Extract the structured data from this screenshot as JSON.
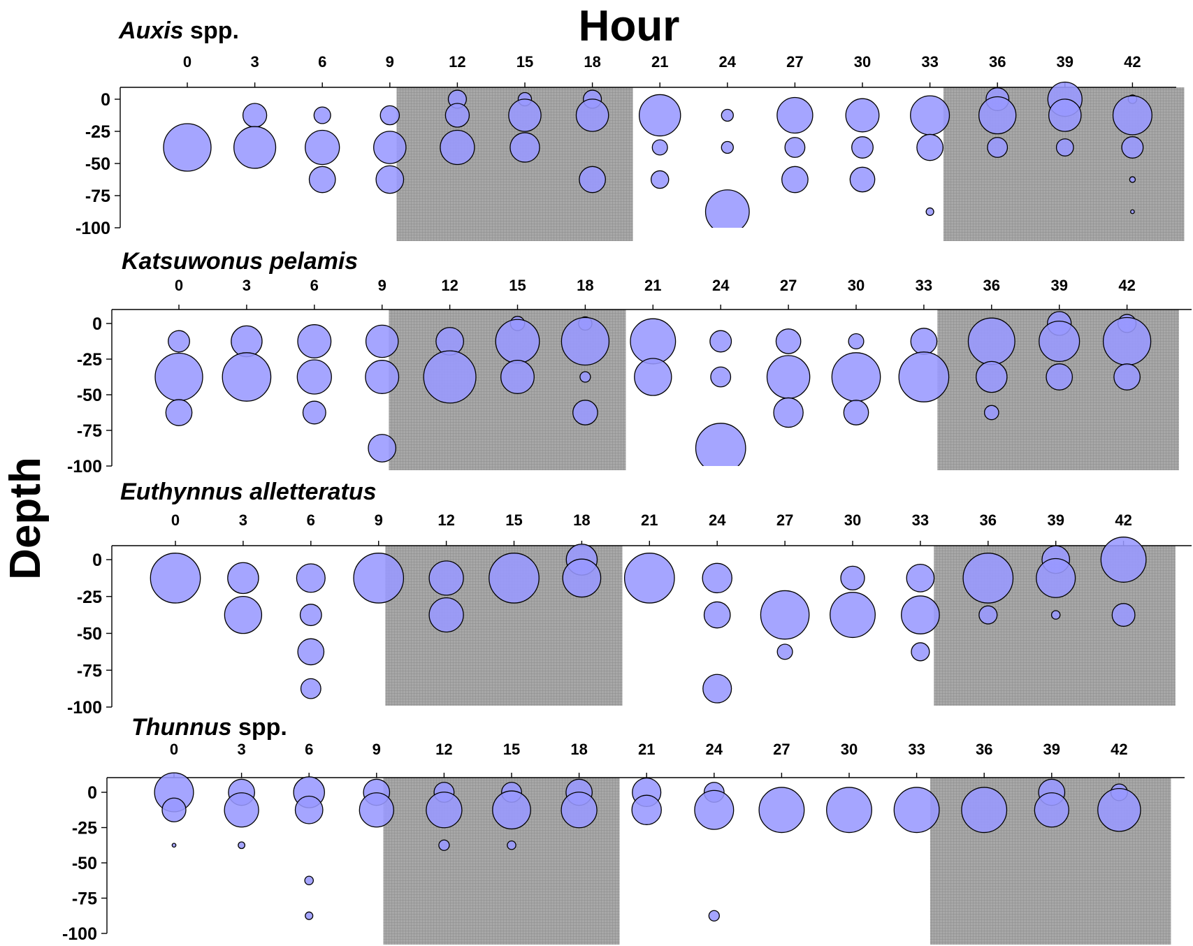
{
  "chart_data": {
    "type": "scatter",
    "subtype": "bubble",
    "title": "Hour",
    "ylabel": "Depth",
    "x_ticks": [
      0,
      3,
      6,
      9,
      12,
      15,
      18,
      21,
      24,
      27,
      30,
      33,
      36,
      39,
      42
    ],
    "y_ticks": [
      0,
      -25,
      -50,
      -75,
      -100
    ],
    "ylim": [
      -100,
      10
    ],
    "night_shading_hours": [
      [
        9.3,
        19.8
      ],
      [
        33.6,
        44.3
      ]
    ],
    "colors": {
      "bubble_fill": "#9999ff",
      "bubble_stroke": "#000000",
      "night_shade": "#9a9a9a"
    },
    "panels": [
      {
        "species": "Auxis",
        "suffix": " spp.",
        "points": [
          {
            "x": 0,
            "y": -37.5,
            "size": 1.0
          },
          {
            "x": 3,
            "y": -12.5,
            "size": 0.5
          },
          {
            "x": 3,
            "y": -37.5,
            "size": 0.88
          },
          {
            "x": 6,
            "y": -12.5,
            "size": 0.35
          },
          {
            "x": 6,
            "y": -37.5,
            "size": 0.72
          },
          {
            "x": 6,
            "y": -62.5,
            "size": 0.55
          },
          {
            "x": 9,
            "y": -12.5,
            "size": 0.4
          },
          {
            "x": 9,
            "y": -37.5,
            "size": 0.68
          },
          {
            "x": 9,
            "y": -62.5,
            "size": 0.58
          },
          {
            "x": 12,
            "y": 0,
            "size": 0.38
          },
          {
            "x": 12,
            "y": -12.5,
            "size": 0.5
          },
          {
            "x": 12,
            "y": -37.5,
            "size": 0.72
          },
          {
            "x": 15,
            "y": 0,
            "size": 0.28
          },
          {
            "x": 15,
            "y": -12.5,
            "size": 0.68
          },
          {
            "x": 15,
            "y": -37.5,
            "size": 0.62
          },
          {
            "x": 18,
            "y": 0,
            "size": 0.38
          },
          {
            "x": 18,
            "y": -12.5,
            "size": 0.68
          },
          {
            "x": 18,
            "y": -62.5,
            "size": 0.55
          },
          {
            "x": 21,
            "y": -12.5,
            "size": 0.87
          },
          {
            "x": 21,
            "y": -37.5,
            "size": 0.32
          },
          {
            "x": 21,
            "y": -62.5,
            "size": 0.37
          },
          {
            "x": 24,
            "y": -12.5,
            "size": 0.25
          },
          {
            "x": 24,
            "y": -37.5,
            "size": 0.25
          },
          {
            "x": 24,
            "y": -87.5,
            "size": 0.92
          },
          {
            "x": 27,
            "y": -12.5,
            "size": 0.75
          },
          {
            "x": 27,
            "y": -37.5,
            "size": 0.42
          },
          {
            "x": 27,
            "y": -62.5,
            "size": 0.55
          },
          {
            "x": 30,
            "y": -12.5,
            "size": 0.7
          },
          {
            "x": 30,
            "y": -37.5,
            "size": 0.45
          },
          {
            "x": 30,
            "y": -62.5,
            "size": 0.52
          },
          {
            "x": 33,
            "y": -12.5,
            "size": 0.82
          },
          {
            "x": 33,
            "y": -37.5,
            "size": 0.55
          },
          {
            "x": 33,
            "y": -87.5,
            "size": 0.16
          },
          {
            "x": 36,
            "y": 0,
            "size": 0.48
          },
          {
            "x": 36,
            "y": -12.5,
            "size": 0.78
          },
          {
            "x": 36,
            "y": -37.5,
            "size": 0.42
          },
          {
            "x": 39,
            "y": 0,
            "size": 0.72
          },
          {
            "x": 39,
            "y": -12.5,
            "size": 0.68
          },
          {
            "x": 39,
            "y": -37.5,
            "size": 0.36
          },
          {
            "x": 42,
            "y": 0,
            "size": 0.18
          },
          {
            "x": 42,
            "y": -12.5,
            "size": 0.82
          },
          {
            "x": 42,
            "y": -37.5,
            "size": 0.45
          },
          {
            "x": 42,
            "y": -62.5,
            "size": 0.12
          },
          {
            "x": 42,
            "y": -87.5,
            "size": 0.08
          }
        ]
      },
      {
        "species": "Katsuwonus pelamis",
        "suffix": "",
        "points": [
          {
            "x": 0,
            "y": -12.5,
            "size": 0.45
          },
          {
            "x": 0,
            "y": -37.5,
            "size": 1.0
          },
          {
            "x": 0,
            "y": -62.5,
            "size": 0.55
          },
          {
            "x": 3,
            "y": -12.5,
            "size": 0.65
          },
          {
            "x": 3,
            "y": -37.5,
            "size": 1.02
          },
          {
            "x": 6,
            "y": -12.5,
            "size": 0.7
          },
          {
            "x": 6,
            "y": -37.5,
            "size": 0.72
          },
          {
            "x": 6,
            "y": -62.5,
            "size": 0.48
          },
          {
            "x": 9,
            "y": -12.5,
            "size": 0.68
          },
          {
            "x": 9,
            "y": -37.5,
            "size": 0.7
          },
          {
            "x": 9,
            "y": -87.5,
            "size": 0.58
          },
          {
            "x": 12,
            "y": -12.5,
            "size": 0.58
          },
          {
            "x": 12,
            "y": -37.5,
            "size": 1.1
          },
          {
            "x": 15,
            "y": 0,
            "size": 0.3
          },
          {
            "x": 15,
            "y": -12.5,
            "size": 0.92
          },
          {
            "x": 15,
            "y": -37.5,
            "size": 0.7
          },
          {
            "x": 18,
            "y": 0,
            "size": 0.28
          },
          {
            "x": 18,
            "y": -12.5,
            "size": 1.0
          },
          {
            "x": 18,
            "y": -37.5,
            "size": 0.22
          },
          {
            "x": 18,
            "y": -62.5,
            "size": 0.52
          },
          {
            "x": 21,
            "y": -12.5,
            "size": 0.95
          },
          {
            "x": 21,
            "y": -37.5,
            "size": 0.78
          },
          {
            "x": 24,
            "y": -12.5,
            "size": 0.45
          },
          {
            "x": 24,
            "y": -37.5,
            "size": 0.42
          },
          {
            "x": 24,
            "y": -87.5,
            "size": 1.05
          },
          {
            "x": 27,
            "y": -12.5,
            "size": 0.52
          },
          {
            "x": 27,
            "y": -37.5,
            "size": 0.9
          },
          {
            "x": 27,
            "y": -62.5,
            "size": 0.62
          },
          {
            "x": 30,
            "y": -12.5,
            "size": 0.32
          },
          {
            "x": 30,
            "y": -37.5,
            "size": 1.02
          },
          {
            "x": 30,
            "y": -62.5,
            "size": 0.52
          },
          {
            "x": 33,
            "y": -12.5,
            "size": 0.55
          },
          {
            "x": 33,
            "y": -37.5,
            "size": 1.05
          },
          {
            "x": 36,
            "y": -12.5,
            "size": 0.98
          },
          {
            "x": 36,
            "y": -37.5,
            "size": 0.65
          },
          {
            "x": 36,
            "y": -62.5,
            "size": 0.3
          },
          {
            "x": 39,
            "y": 0,
            "size": 0.5
          },
          {
            "x": 39,
            "y": -12.5,
            "size": 0.85
          },
          {
            "x": 39,
            "y": -37.5,
            "size": 0.55
          },
          {
            "x": 42,
            "y": 0,
            "size": 0.38
          },
          {
            "x": 42,
            "y": -12.5,
            "size": 1.0
          },
          {
            "x": 42,
            "y": -37.5,
            "size": 0.55
          }
        ]
      },
      {
        "species": "Euthynnus alletteratus",
        "suffix": "",
        "points": [
          {
            "x": 0,
            "y": -12.5,
            "size": 1.05
          },
          {
            "x": 3,
            "y": -12.5,
            "size": 0.65
          },
          {
            "x": 3,
            "y": -37.5,
            "size": 0.78
          },
          {
            "x": 6,
            "y": -12.5,
            "size": 0.6
          },
          {
            "x": 6,
            "y": -37.5,
            "size": 0.45
          },
          {
            "x": 6,
            "y": -62.5,
            "size": 0.55
          },
          {
            "x": 6,
            "y": -87.5,
            "size": 0.42
          },
          {
            "x": 9,
            "y": -12.5,
            "size": 1.05
          },
          {
            "x": 12,
            "y": -12.5,
            "size": 0.72
          },
          {
            "x": 12,
            "y": -37.5,
            "size": 0.72
          },
          {
            "x": 15,
            "y": -12.5,
            "size": 1.05
          },
          {
            "x": 18,
            "y": 0,
            "size": 0.65
          },
          {
            "x": 18,
            "y": -12.5,
            "size": 0.8
          },
          {
            "x": 21,
            "y": -12.5,
            "size": 1.05
          },
          {
            "x": 24,
            "y": -12.5,
            "size": 0.62
          },
          {
            "x": 24,
            "y": -37.5,
            "size": 0.55
          },
          {
            "x": 24,
            "y": -87.5,
            "size": 0.6
          },
          {
            "x": 27,
            "y": -37.5,
            "size": 1.02
          },
          {
            "x": 27,
            "y": -62.5,
            "size": 0.32
          },
          {
            "x": 30,
            "y": -12.5,
            "size": 0.5
          },
          {
            "x": 30,
            "y": -37.5,
            "size": 0.95
          },
          {
            "x": 33,
            "y": -12.5,
            "size": 0.58
          },
          {
            "x": 33,
            "y": -37.5,
            "size": 0.8
          },
          {
            "x": 33,
            "y": -62.5,
            "size": 0.38
          },
          {
            "x": 36,
            "y": -12.5,
            "size": 1.05
          },
          {
            "x": 36,
            "y": -37.5,
            "size": 0.38
          },
          {
            "x": 39,
            "y": 0,
            "size": 0.58
          },
          {
            "x": 39,
            "y": -12.5,
            "size": 0.82
          },
          {
            "x": 39,
            "y": -37.5,
            "size": 0.18
          },
          {
            "x": 42,
            "y": 0,
            "size": 0.95
          },
          {
            "x": 42,
            "y": -37.5,
            "size": 0.48
          }
        ]
      },
      {
        "species": "Thunnus",
        "suffix": " spp.",
        "points": [
          {
            "x": 0,
            "y": 0,
            "size": 0.82
          },
          {
            "x": 0,
            "y": -12.5,
            "size": 0.5
          },
          {
            "x": 0,
            "y": -37.5,
            "size": 0.08
          },
          {
            "x": 3,
            "y": 0,
            "size": 0.55
          },
          {
            "x": 3,
            "y": -12.5,
            "size": 0.72
          },
          {
            "x": 3,
            "y": -37.5,
            "size": 0.14
          },
          {
            "x": 6,
            "y": 0,
            "size": 0.65
          },
          {
            "x": 6,
            "y": -12.5,
            "size": 0.58
          },
          {
            "x": 6,
            "y": -62.5,
            "size": 0.18
          },
          {
            "x": 6,
            "y": -87.5,
            "size": 0.16
          },
          {
            "x": 9,
            "y": 0,
            "size": 0.55
          },
          {
            "x": 9,
            "y": -12.5,
            "size": 0.72
          },
          {
            "x": 12,
            "y": 0,
            "size": 0.42
          },
          {
            "x": 12,
            "y": -12.5,
            "size": 0.75
          },
          {
            "x": 12,
            "y": -37.5,
            "size": 0.22
          },
          {
            "x": 15,
            "y": 0,
            "size": 0.42
          },
          {
            "x": 15,
            "y": -12.5,
            "size": 0.8
          },
          {
            "x": 15,
            "y": -37.5,
            "size": 0.18
          },
          {
            "x": 18,
            "y": 0,
            "size": 0.55
          },
          {
            "x": 18,
            "y": -12.5,
            "size": 0.75
          },
          {
            "x": 21,
            "y": 0,
            "size": 0.6
          },
          {
            "x": 21,
            "y": -12.5,
            "size": 0.62
          },
          {
            "x": 24,
            "y": 0,
            "size": 0.42
          },
          {
            "x": 24,
            "y": -12.5,
            "size": 0.82
          },
          {
            "x": 24,
            "y": -87.5,
            "size": 0.22
          },
          {
            "x": 27,
            "y": -12.5,
            "size": 0.95
          },
          {
            "x": 30,
            "y": -12.5,
            "size": 0.95
          },
          {
            "x": 33,
            "y": -12.5,
            "size": 0.95
          },
          {
            "x": 36,
            "y": -12.5,
            "size": 0.95
          },
          {
            "x": 39,
            "y": 0,
            "size": 0.55
          },
          {
            "x": 39,
            "y": -12.5,
            "size": 0.72
          },
          {
            "x": 42,
            "y": 0,
            "size": 0.35
          },
          {
            "x": 42,
            "y": -12.5,
            "size": 0.9
          }
        ]
      }
    ]
  }
}
